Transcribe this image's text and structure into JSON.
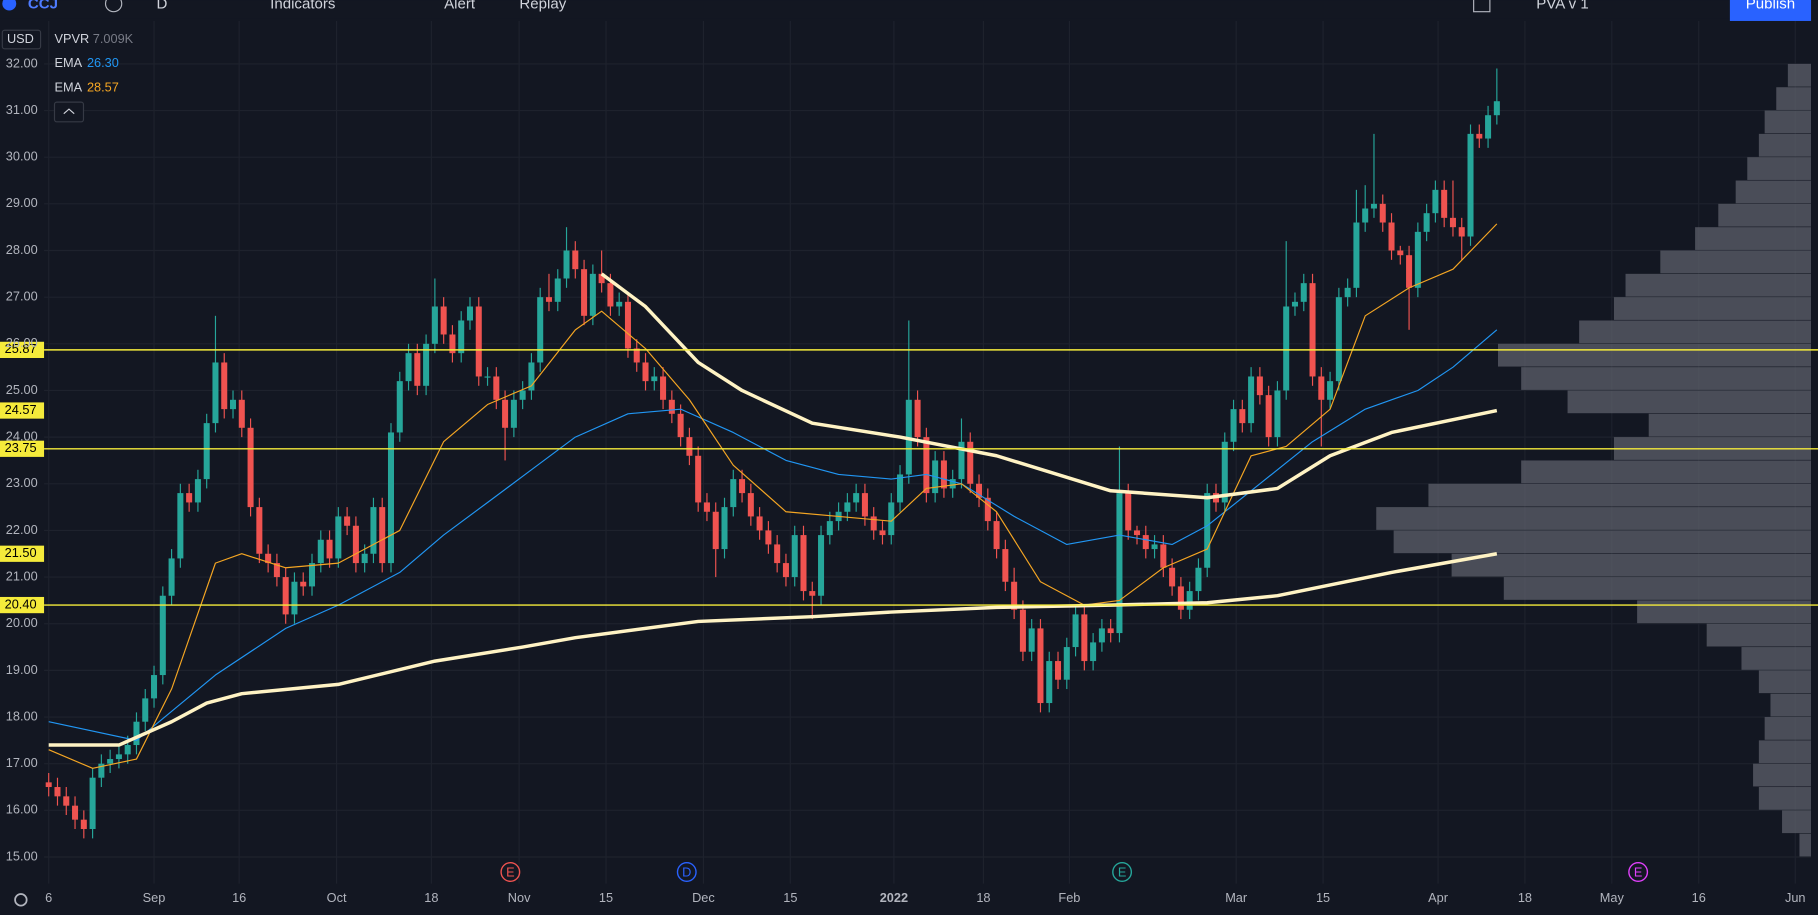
{
  "toolbar": {
    "symbol": "CCJ",
    "interval": "D",
    "items": [
      "Indicators",
      "Alert",
      "Replay"
    ],
    "layout": "PVA v 1",
    "publish": "Publish"
  },
  "chart_data": {
    "type": "candlestick",
    "currency": "USD",
    "indicator": {
      "name": "VPVR",
      "value": "7.009K"
    },
    "up_color": "#26a69a",
    "down_color": "#ef5350",
    "grid": true,
    "xlim": [
      -0.53,
      200.8
    ],
    "xticks": [
      {
        "value": 0,
        "label": "6"
      },
      {
        "value": 12,
        "label": "Sep"
      },
      {
        "value": 21.7,
        "label": "16"
      },
      {
        "value": 32.8,
        "label": "Oct"
      },
      {
        "value": 43.6,
        "label": "18"
      },
      {
        "value": 53.6,
        "label": "Nov"
      },
      {
        "value": 63.5,
        "label": "15"
      },
      {
        "value": 74.6,
        "label": "Dec"
      },
      {
        "value": 84.5,
        "label": "15"
      },
      {
        "value": 96.3,
        "label": "2022"
      },
      {
        "value": 106.5,
        "label": "18"
      },
      {
        "value": 116.3,
        "label": "Feb"
      },
      {
        "value": 135.3,
        "label": "Mar"
      },
      {
        "value": 145.2,
        "label": "15"
      },
      {
        "value": 158.3,
        "label": "Apr"
      },
      {
        "value": 168.2,
        "label": "18"
      },
      {
        "value": 178.1,
        "label": "May"
      },
      {
        "value": 188,
        "label": "16"
      },
      {
        "value": 199,
        "label": "Jun"
      }
    ],
    "ylim": [
      14.43,
      32.92
    ],
    "yticks": [
      {
        "value": 15,
        "label": "15.00"
      },
      {
        "value": 16,
        "label": "16.00"
      },
      {
        "value": 17,
        "label": "17.00"
      },
      {
        "value": 18,
        "label": "18.00"
      },
      {
        "value": 19,
        "label": "19.00"
      },
      {
        "value": 20,
        "label": "20.00"
      },
      {
        "value": 21,
        "label": "21.00"
      },
      {
        "value": 22,
        "label": "22.00"
      },
      {
        "value": 23,
        "label": "23.00"
      },
      {
        "value": 24,
        "label": "24.00"
      },
      {
        "value": 25,
        "label": "25.00"
      },
      {
        "value": 26,
        "label": "26.00"
      },
      {
        "value": 27,
        "label": "27.00"
      },
      {
        "value": 28,
        "label": "28.00"
      },
      {
        "value": 29,
        "label": "29.00"
      },
      {
        "value": 30,
        "label": "30.00"
      },
      {
        "value": 31,
        "label": "31.00"
      },
      {
        "value": 32,
        "label": "32.00"
      }
    ],
    "open": [
      16.6,
      16.5,
      16.3,
      16.1,
      15.8,
      15.6,
      16.7,
      17.0,
      17.1,
      17.2,
      17.4,
      17.9,
      18.4,
      18.9,
      20.6,
      21.4,
      22.8,
      22.6,
      23.1,
      24.3,
      25.6,
      24.6,
      24.8,
      24.2,
      22.5,
      21.5,
      21.3,
      21.0,
      20.2,
      20.9,
      20.8,
      21.3,
      21.8,
      21.4,
      22.3,
      22.1,
      21.3,
      21.5,
      22.5,
      21.3,
      24.1,
      25.2,
      25.8,
      25.1,
      26.0,
      26.8,
      26.2,
      25.8,
      26.5,
      26.8,
      25.3,
      25.3,
      24.8,
      24.2,
      24.8,
      25.0,
      25.6,
      27.0,
      26.9,
      27.4,
      28.0,
      27.6,
      26.6,
      27.5,
      27.3,
      26.8,
      26.9,
      25.9,
      25.6,
      25.2,
      25.3,
      24.8,
      24.5,
      24.0,
      23.6,
      22.6,
      22.4,
      21.6,
      22.5,
      23.1,
      22.8,
      22.3,
      22.0,
      21.7,
      21.3,
      21.0,
      21.9,
      20.7,
      20.6,
      21.9,
      22.2,
      22.4,
      22.6,
      22.8,
      22.3,
      22.0,
      21.9,
      22.6,
      23.2,
      24.8,
      24.0,
      22.8,
      23.5,
      22.9,
      23.1,
      23.9,
      23.0,
      22.7,
      22.2,
      21.6,
      20.9,
      20.3,
      19.4,
      19.9,
      18.3,
      19.2,
      18.8,
      19.5,
      20.2,
      19.2,
      19.6,
      19.9,
      19.8,
      22.8,
      22.0,
      21.9,
      21.6,
      21.7,
      21.2,
      20.8,
      20.3,
      20.7,
      21.2,
      22.8,
      22.6,
      23.9,
      24.6,
      24.3,
      25.3,
      24.9,
      24.0,
      25.0,
      26.8,
      26.9,
      27.3,
      25.3,
      24.8,
      25.2,
      27.0,
      27.2,
      28.6,
      28.9,
      29.0,
      28.6,
      28.0,
      27.9,
      27.2,
      28.4,
      28.8,
      29.3,
      28.7,
      28.5,
      28.3,
      30.5,
      30.4,
      30.9
    ],
    "high": [
      16.8,
      16.7,
      16.5,
      16.3,
      16.0,
      16.9,
      17.2,
      17.3,
      17.4,
      17.6,
      18.1,
      18.6,
      19.1,
      20.8,
      21.6,
      23.0,
      23.0,
      23.3,
      24.5,
      26.6,
      25.8,
      25.0,
      25.0,
      24.4,
      22.7,
      21.7,
      21.5,
      21.2,
      21.1,
      21.1,
      21.5,
      22.0,
      22.0,
      22.5,
      22.5,
      22.3,
      21.7,
      22.7,
      22.7,
      24.3,
      25.4,
      26.0,
      26.0,
      26.2,
      27.4,
      27.0,
      26.4,
      26.7,
      27.0,
      27.0,
      25.5,
      25.5,
      25.0,
      25.0,
      25.2,
      25.8,
      27.2,
      27.5,
      27.6,
      28.5,
      28.2,
      27.8,
      27.7,
      28.0,
      27.5,
      27.1,
      27.1,
      26.1,
      25.8,
      25.5,
      25.5,
      25.0,
      24.7,
      24.2,
      23.8,
      22.8,
      22.6,
      22.7,
      23.3,
      23.3,
      23.0,
      22.5,
      22.2,
      21.9,
      21.5,
      22.1,
      22.1,
      20.9,
      22.1,
      22.4,
      22.6,
      22.8,
      23.0,
      23.0,
      22.5,
      22.2,
      22.8,
      23.4,
      26.5,
      25.0,
      24.2,
      23.7,
      23.7,
      23.3,
      24.4,
      24.1,
      23.2,
      22.9,
      22.4,
      21.8,
      21.2,
      20.5,
      20.1,
      20.1,
      19.4,
      19.4,
      19.7,
      20.4,
      20.4,
      19.8,
      20.1,
      20.1,
      23.8,
      23.0,
      22.1,
      22.1,
      21.9,
      21.9,
      21.4,
      21.0,
      20.9,
      21.4,
      23.0,
      23.0,
      24.1,
      24.8,
      24.8,
      25.5,
      25.5,
      25.1,
      25.2,
      28.2,
      27.1,
      27.5,
      27.5,
      25.5,
      25.4,
      27.2,
      27.4,
      29.3,
      29.4,
      30.5,
      29.2,
      28.8,
      28.1,
      28.1,
      28.6,
      29.0,
      29.5,
      29.5,
      29.5,
      28.7,
      30.7,
      30.7,
      31.1,
      31.9
    ],
    "low": [
      16.3,
      16.1,
      15.9,
      15.6,
      15.4,
      15.4,
      16.5,
      16.8,
      16.9,
      17.0,
      17.2,
      17.7,
      18.2,
      18.7,
      20.4,
      21.2,
      22.4,
      22.4,
      22.9,
      24.1,
      24.4,
      24.4,
      24.0,
      22.3,
      21.3,
      21.1,
      20.8,
      20.0,
      20.0,
      20.6,
      20.6,
      21.1,
      21.2,
      21.2,
      21.9,
      21.1,
      21.1,
      21.3,
      21.1,
      21.1,
      23.9,
      25.0,
      24.9,
      24.9,
      25.8,
      26.0,
      25.6,
      25.6,
      26.3,
      25.1,
      25.1,
      24.6,
      23.5,
      24.0,
      24.6,
      24.8,
      25.4,
      26.7,
      26.7,
      27.2,
      27.4,
      26.4,
      26.4,
      27.1,
      26.6,
      26.6,
      25.7,
      25.4,
      25.0,
      25.0,
      24.6,
      24.3,
      23.8,
      23.4,
      22.4,
      22.2,
      21.0,
      21.4,
      22.3,
      22.6,
      22.1,
      21.8,
      21.5,
      21.1,
      20.8,
      20.8,
      20.5,
      20.1,
      20.4,
      21.7,
      22.0,
      22.2,
      22.4,
      22.1,
      21.8,
      21.7,
      21.7,
      22.4,
      23.0,
      23.8,
      22.6,
      22.6,
      22.7,
      22.7,
      22.9,
      22.8,
      22.5,
      22.0,
      21.4,
      20.7,
      20.1,
      19.2,
      19.2,
      18.1,
      18.1,
      18.6,
      18.6,
      19.3,
      19.0,
      19.0,
      19.4,
      19.6,
      19.6,
      21.8,
      21.7,
      21.4,
      21.4,
      21.0,
      20.6,
      20.1,
      20.1,
      20.5,
      21.0,
      22.4,
      22.4,
      23.7,
      24.1,
      24.1,
      24.7,
      23.8,
      23.8,
      24.8,
      26.6,
      26.7,
      25.1,
      23.8,
      24.6,
      25.0,
      26.8,
      27.0,
      28.4,
      28.7,
      28.4,
      27.8,
      27.7,
      26.3,
      27.0,
      28.2,
      28.6,
      28.5,
      28.3,
      27.8,
      28.1,
      30.2,
      30.2,
      30.7
    ],
    "close": [
      16.5,
      16.3,
      16.1,
      15.8,
      15.6,
      16.7,
      17.0,
      17.1,
      17.2,
      17.4,
      17.9,
      18.4,
      18.9,
      20.6,
      21.4,
      22.8,
      22.6,
      23.1,
      24.3,
      25.6,
      24.6,
      24.8,
      24.2,
      22.5,
      21.5,
      21.3,
      21.0,
      20.2,
      20.9,
      20.8,
      21.3,
      21.8,
      21.4,
      22.3,
      22.1,
      21.3,
      21.5,
      22.5,
      21.3,
      24.1,
      25.2,
      25.8,
      25.1,
      26.0,
      26.8,
      26.2,
      25.8,
      26.5,
      26.8,
      25.3,
      25.3,
      24.8,
      24.2,
      24.8,
      25.0,
      25.6,
      27.0,
      26.9,
      27.4,
      28.0,
      27.6,
      26.6,
      27.5,
      27.3,
      26.8,
      26.9,
      25.9,
      25.6,
      25.2,
      25.3,
      24.8,
      24.5,
      24.0,
      23.6,
      22.6,
      22.4,
      21.6,
      22.5,
      23.1,
      22.8,
      22.3,
      22.0,
      21.7,
      21.3,
      21.0,
      21.9,
      20.7,
      20.6,
      21.9,
      22.2,
      22.4,
      22.6,
      22.8,
      22.3,
      22.0,
      21.9,
      22.6,
      23.2,
      24.8,
      24.0,
      22.8,
      23.5,
      22.9,
      23.1,
      23.9,
      23.0,
      22.7,
      22.2,
      21.6,
      20.9,
      20.3,
      19.4,
      19.9,
      18.3,
      19.2,
      18.8,
      19.5,
      20.2,
      19.2,
      19.6,
      19.9,
      19.8,
      22.8,
      22.0,
      21.9,
      21.6,
      21.7,
      21.2,
      20.8,
      20.3,
      20.7,
      21.2,
      22.8,
      22.6,
      23.9,
      24.6,
      24.3,
      25.3,
      24.9,
      24.0,
      25.0,
      26.8,
      26.9,
      27.3,
      25.3,
      24.8,
      25.2,
      27.0,
      27.2,
      28.6,
      28.9,
      29.0,
      28.6,
      28.0,
      27.9,
      27.2,
      28.4,
      28.8,
      29.3,
      28.7,
      28.5,
      28.3,
      30.5,
      30.4,
      30.9,
      31.2
    ],
    "lines": [
      {
        "name": "EMA",
        "last_label": "26.30",
        "color": "#2196f3",
        "width": 1,
        "x": [
          0,
          10,
          19,
          27,
          33,
          40,
          45,
          50,
          55,
          60,
          66,
          72,
          78,
          84,
          90,
          96,
          100,
          104,
          110,
          116,
          122,
          128,
          132,
          138,
          144,
          150,
          156,
          160,
          165
        ],
        "values": [
          17.9,
          17.5,
          18.9,
          19.9,
          20.4,
          21.1,
          21.9,
          22.6,
          23.3,
          24.0,
          24.5,
          24.6,
          24.1,
          23.5,
          23.2,
          23.1,
          23.2,
          23.0,
          22.3,
          21.7,
          21.9,
          21.7,
          22.1,
          23.0,
          23.9,
          24.6,
          25.0,
          25.5,
          26.3
        ]
      },
      {
        "name": "EMA",
        "last_label": "28.57",
        "color": "#f5a623",
        "width": 1,
        "x": [
          0,
          5,
          10,
          14,
          19,
          22,
          27,
          33,
          40,
          45,
          50,
          55,
          60,
          63,
          68,
          73,
          78,
          84,
          90,
          96,
          100,
          104,
          108,
          113,
          118,
          122,
          127,
          132,
          137,
          141,
          146,
          150,
          155,
          160,
          165
        ],
        "values": [
          17.3,
          16.9,
          17.1,
          18.6,
          21.3,
          21.5,
          21.2,
          21.3,
          22.0,
          23.9,
          24.7,
          25.1,
          26.3,
          26.7,
          25.9,
          24.8,
          23.4,
          22.4,
          22.3,
          22.2,
          22.9,
          23.0,
          22.4,
          20.9,
          20.4,
          20.5,
          21.2,
          21.6,
          23.6,
          23.8,
          24.6,
          26.6,
          27.2,
          27.6,
          28.57
        ]
      },
      {
        "color": "#fff3c4",
        "width": 3,
        "x": [
          63,
          68,
          74,
          79,
          87,
          97,
          108,
          121,
          132,
          140,
          146,
          153,
          165
        ],
        "values": [
          27.5,
          26.8,
          25.6,
          25.0,
          24.3,
          24.0,
          23.6,
          22.85,
          22.7,
          22.9,
          23.6,
          24.1,
          24.57
        ]
      },
      {
        "color": "#fff3c4",
        "width": 3,
        "x": [
          0,
          8,
          14,
          18,
          22,
          33,
          44,
          54,
          60,
          74,
          87,
          96,
          108,
          121,
          132,
          140,
          153,
          165
        ],
        "values": [
          17.4,
          17.4,
          17.9,
          18.3,
          18.5,
          18.7,
          19.2,
          19.5,
          19.7,
          20.05,
          20.15,
          20.25,
          20.35,
          20.4,
          20.45,
          20.6,
          21.1,
          21.5
        ]
      }
    ],
    "levels": [
      {
        "value": 25.87,
        "label": "25.87",
        "line": true
      },
      {
        "value": 24.57,
        "label": "24.57",
        "line": false
      },
      {
        "value": 23.75,
        "label": "23.75",
        "line": true
      },
      {
        "value": 21.5,
        "label": "21.50",
        "line": false
      },
      {
        "value": 20.4,
        "label": "20.40",
        "line": true
      }
    ],
    "level_color": "#f5eb3b",
    "volume_profile": {
      "color": "#5d606b",
      "bin_edges": [
        15.0,
        15.5,
        16.0,
        16.5,
        17.0,
        17.5,
        18.0,
        18.5,
        19.0,
        19.5,
        20.0,
        20.5,
        21.0,
        21.5,
        22.0,
        22.5,
        23.0,
        23.5,
        24.0,
        24.5,
        25.0,
        25.5,
        26.0,
        26.5,
        27.0,
        27.5,
        28.0,
        28.5,
        29.0,
        29.5,
        30.0,
        30.5,
        31.0,
        31.5,
        32.0
      ],
      "values": [
        10,
        25,
        45,
        50,
        45,
        40,
        35,
        45,
        60,
        90,
        150,
        265,
        310,
        360,
        375,
        330,
        250,
        170,
        140,
        210,
        250,
        270,
        200,
        170,
        160,
        130,
        100,
        80,
        65,
        55,
        45,
        40,
        30,
        20
      ]
    },
    "events": [
      {
        "label": "E",
        "x": 52.6,
        "color": "#ef5350"
      },
      {
        "label": "D",
        "x": 72.7,
        "color": "#2962ff"
      },
      {
        "label": "E",
        "x": 122.3,
        "color": "#26a69a"
      },
      {
        "label": "E",
        "x": 181.1,
        "color": "#e040fb"
      }
    ]
  }
}
